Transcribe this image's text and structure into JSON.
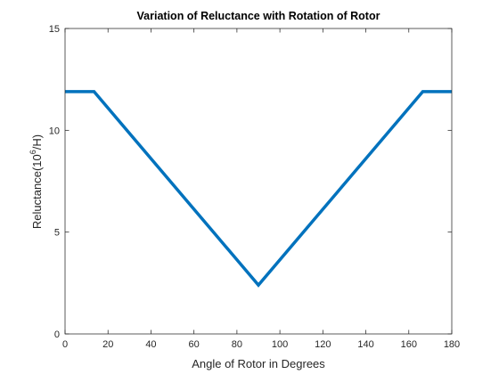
{
  "chart_data": {
    "type": "line",
    "title": "Variation of Reluctance with Rotation of Rotor",
    "xlabel": "Angle of Rotor in Degrees",
    "ylabel": {
      "prefix": "Reluctance(10",
      "superscript": "6",
      "suffix": "/H)"
    },
    "xlim": [
      0,
      180
    ],
    "ylim": [
      0,
      15
    ],
    "xticks": [
      0,
      20,
      40,
      60,
      80,
      100,
      120,
      140,
      160,
      180
    ],
    "yticks": [
      0,
      5,
      10,
      15
    ],
    "grid": false,
    "series": [
      {
        "color": "#0072BD",
        "x": [
          0,
          13.5,
          90,
          166.5,
          180
        ],
        "y": [
          11.9,
          11.9,
          2.4,
          11.9,
          11.9
        ]
      }
    ]
  }
}
